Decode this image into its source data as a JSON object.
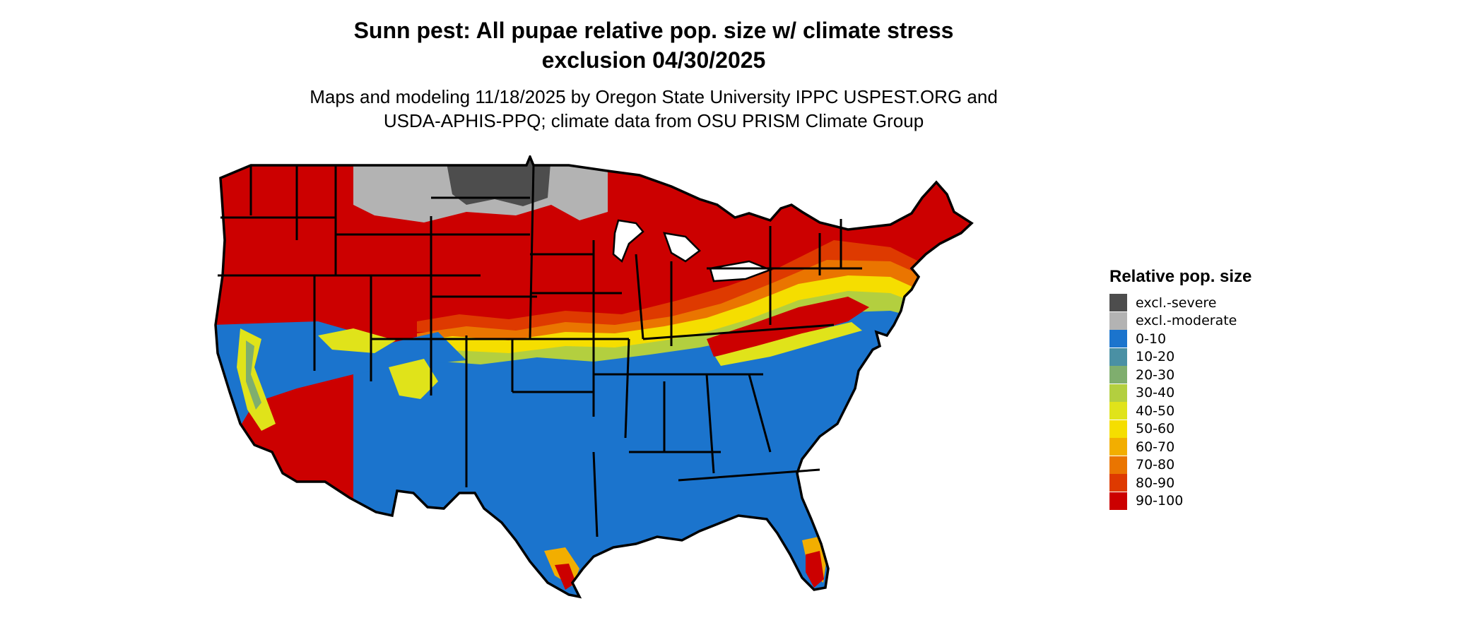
{
  "title": {
    "line1": "Sunn pest: All pupae relative pop. size w/ climate stress",
    "line2": "exclusion 04/30/2025"
  },
  "subtitle": {
    "line1": "Maps and modeling 11/18/2025 by Oregon State University IPPC USPEST.ORG and",
    "line2": "USDA-APHIS-PPQ; climate data from OSU PRISM Climate Group"
  },
  "legend": {
    "title": "Relative pop. size",
    "items": [
      {
        "label": "excl.-severe",
        "color": "#4d4d4d"
      },
      {
        "label": "excl.-moderate",
        "color": "#b3b3b3"
      },
      {
        "label": "0-10",
        "color": "#1b74cd"
      },
      {
        "label": "10-20",
        "color": "#4a90a4"
      },
      {
        "label": "20-30",
        "color": "#7fae6e"
      },
      {
        "label": "30-40",
        "color": "#b3cf3f"
      },
      {
        "label": "40-50",
        "color": "#e0e31a"
      },
      {
        "label": "50-60",
        "color": "#f5de00"
      },
      {
        "label": "60-70",
        "color": "#f2ae00"
      },
      {
        "label": "70-80",
        "color": "#ea7500"
      },
      {
        "label": "80-90",
        "color": "#de3a00"
      },
      {
        "label": "90-100",
        "color": "#cc0000"
      }
    ]
  }
}
